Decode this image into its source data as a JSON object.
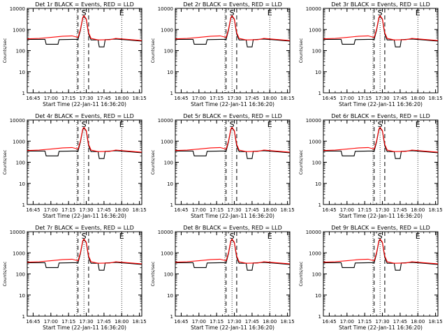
{
  "chart_data": {
    "shared": {
      "type": "line",
      "xlabel": "Start Time (22-Jan-11 16:36:20)",
      "ylabel": "Counts/sec",
      "yscale": "log",
      "ylim": [
        1,
        10000
      ],
      "yticks": [
        1,
        10,
        100,
        1000,
        10000
      ],
      "ytick_labels": [
        "1",
        "10",
        "100",
        "1000",
        "10000"
      ],
      "xlim": [
        "16:40",
        "18:17"
      ],
      "xticks": [
        "16:45",
        "17:00",
        "17:15",
        "17:30",
        "17:45",
        "18:00",
        "18:15"
      ],
      "event_markers": [
        {
          "label": "S",
          "time": "17:28",
          "style": "dotted"
        },
        {
          "label": "E",
          "time": "18:00",
          "style": "dotted"
        },
        {
          "label": "",
          "time": "17:22",
          "style": "dotted"
        }
      ],
      "window": {
        "start": "17:23",
        "end": "17:32",
        "style": "dashed"
      },
      "series_colors": {
        "events": "#000000",
        "lld": "#ff0000"
      },
      "series": [
        {
          "key": "events",
          "x": [
            "16:40",
            "16:50",
            "16:55",
            "16:56",
            "17:06",
            "17:07",
            "17:18",
            "17:23",
            "17:25",
            "17:27",
            "17:28",
            "17:30",
            "17:32",
            "17:34",
            "17:40",
            "17:41",
            "17:45",
            "17:46",
            "17:55",
            "18:05",
            "18:17"
          ],
          "y": [
            340,
            340,
            340,
            200,
            200,
            330,
            340,
            340,
            900,
            3500,
            4200,
            3000,
            600,
            320,
            320,
            150,
            150,
            330,
            350,
            320,
            280
          ]
        },
        {
          "key": "lld",
          "x": [
            "16:40",
            "16:50",
            "17:00",
            "17:10",
            "17:18",
            "17:23",
            "17:25",
            "17:27",
            "17:28",
            "17:30",
            "17:32",
            "17:34",
            "17:40",
            "17:50",
            "17:55",
            "18:05",
            "18:17"
          ],
          "y": [
            360,
            380,
            420,
            480,
            500,
            420,
            1000,
            3800,
            4500,
            3200,
            700,
            380,
            320,
            330,
            380,
            340,
            300
          ]
        }
      ]
    },
    "panels": [
      {
        "title": "Det 1r BLACK = Events, RED = LLD"
      },
      {
        "title": "Det 2r BLACK = Events, RED = LLD"
      },
      {
        "title": "Det 3r BLACK = Events, RED = LLD"
      },
      {
        "title": "Det 4r BLACK = Events, RED = LLD"
      },
      {
        "title": "Det 5r BLACK = Events, RED = LLD"
      },
      {
        "title": "Det 6r BLACK = Events, RED = LLD"
      },
      {
        "title": "Det 7r BLACK = Events, RED = LLD"
      },
      {
        "title": "Det 8r BLACK = Events, RED = LLD"
      },
      {
        "title": "Det 9r BLACK = Events, RED = LLD"
      }
    ]
  }
}
